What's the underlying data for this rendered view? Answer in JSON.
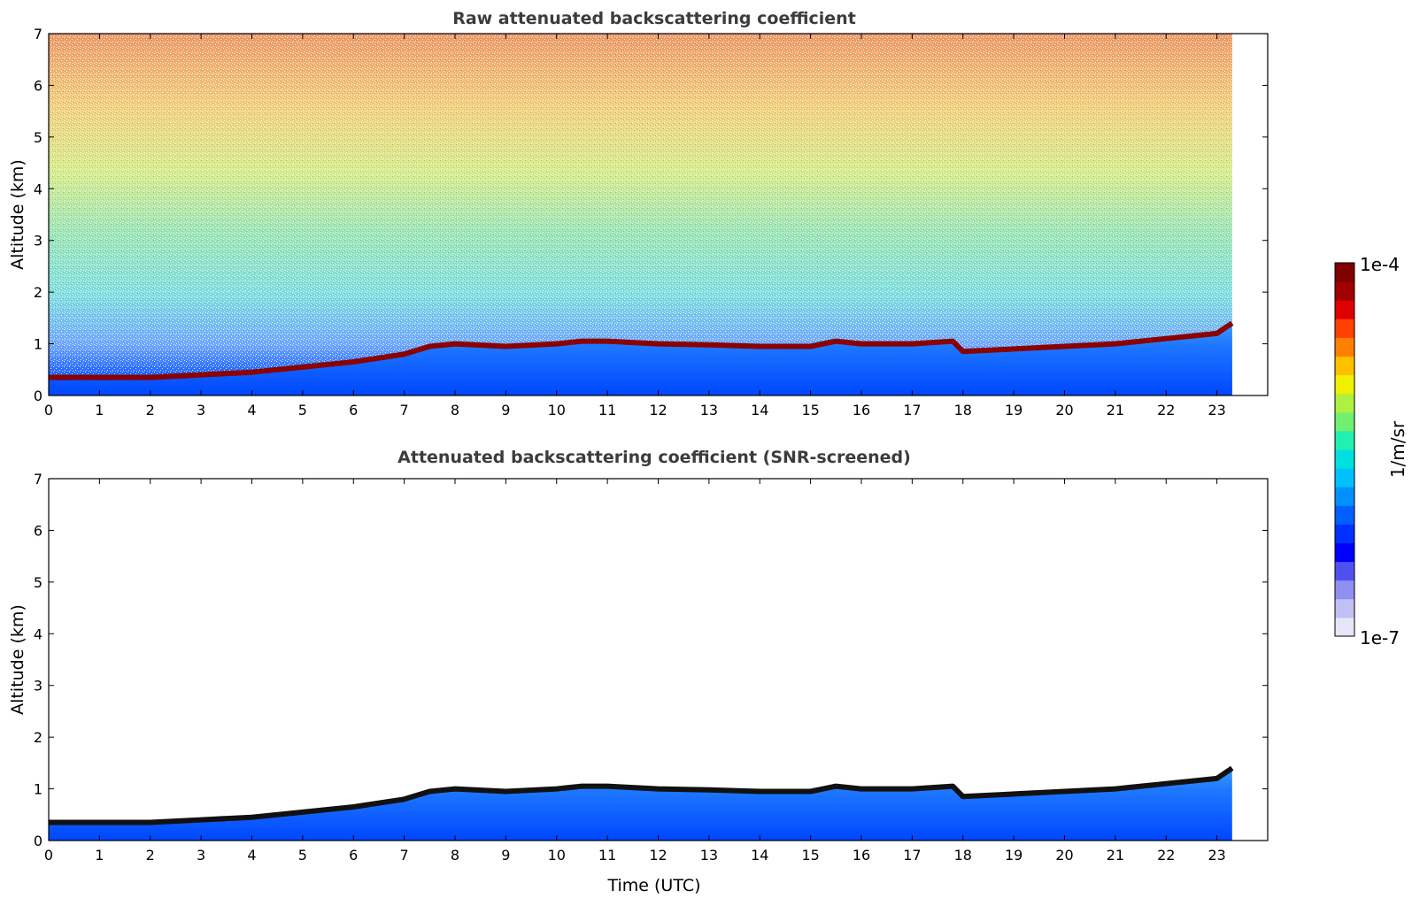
{
  "chart_data": [
    {
      "type": "heatmap",
      "title": "Raw attenuated backscattering coefficient",
      "ylabel": "Altitude (km)",
      "xlabel": "",
      "xlim": [
        0,
        24
      ],
      "ylim": [
        0,
        7
      ],
      "x_ticks": [
        "0",
        "1",
        "2",
        "3",
        "4",
        "5",
        "6",
        "7",
        "8",
        "9",
        "10",
        "11",
        "12",
        "13",
        "14",
        "15",
        "16",
        "17",
        "18",
        "19",
        "20",
        "21",
        "22",
        "23"
      ],
      "y_ticks": [
        "0",
        "1",
        "2",
        "3",
        "4",
        "5",
        "6",
        "7"
      ],
      "data_end_time": 23.3,
      "layer_top_km": {
        "time": [
          0,
          1,
          2,
          3,
          4,
          5,
          6,
          7,
          7.5,
          8,
          9,
          10,
          10.5,
          11,
          12,
          13,
          14,
          15,
          15.5,
          16,
          17,
          17.8,
          18,
          19,
          20,
          21,
          22,
          23,
          23.3
        ],
        "height": [
          0.35,
          0.35,
          0.35,
          0.4,
          0.45,
          0.55,
          0.65,
          0.8,
          0.95,
          1.0,
          0.95,
          1.0,
          1.05,
          1.05,
          1.0,
          0.98,
          0.95,
          0.95,
          1.05,
          1.0,
          1.0,
          1.05,
          0.85,
          0.9,
          0.95,
          1.0,
          1.1,
          1.2,
          1.4
        ]
      }
    },
    {
      "type": "heatmap",
      "title": "Attenuated backscattering coefficient (SNR-screened)",
      "ylabel": "Altitude (km)",
      "xlabel": "Time (UTC)",
      "xlim": [
        0,
        24
      ],
      "ylim": [
        0,
        7
      ],
      "x_ticks": [
        "0",
        "1",
        "2",
        "3",
        "4",
        "5",
        "6",
        "7",
        "8",
        "9",
        "10",
        "11",
        "12",
        "13",
        "14",
        "15",
        "16",
        "17",
        "18",
        "19",
        "20",
        "21",
        "22",
        "23"
      ],
      "y_ticks": [
        "0",
        "1",
        "2",
        "3",
        "4",
        "5",
        "6",
        "7"
      ],
      "data_end_time": 23.3
    }
  ],
  "colorbar": {
    "label": "1/m/sr",
    "max_label": "1e-4",
    "min_label": "1e-7",
    "scale": "log",
    "colors": [
      "#e6e6f8",
      "#c0c0f5",
      "#9090f0",
      "#5050f0",
      "#0000ff",
      "#0030ff",
      "#0060ff",
      "#0090ff",
      "#00c0ff",
      "#00e0e0",
      "#20f0b0",
      "#70f070",
      "#b0f040",
      "#f0f000",
      "#ffc000",
      "#ff8000",
      "#ff4000",
      "#e00000",
      "#a00000",
      "#800000"
    ]
  },
  "colors": {
    "title_text": "#3c3c3c",
    "axis": "#000000",
    "layer_top": "#8b0000"
  }
}
